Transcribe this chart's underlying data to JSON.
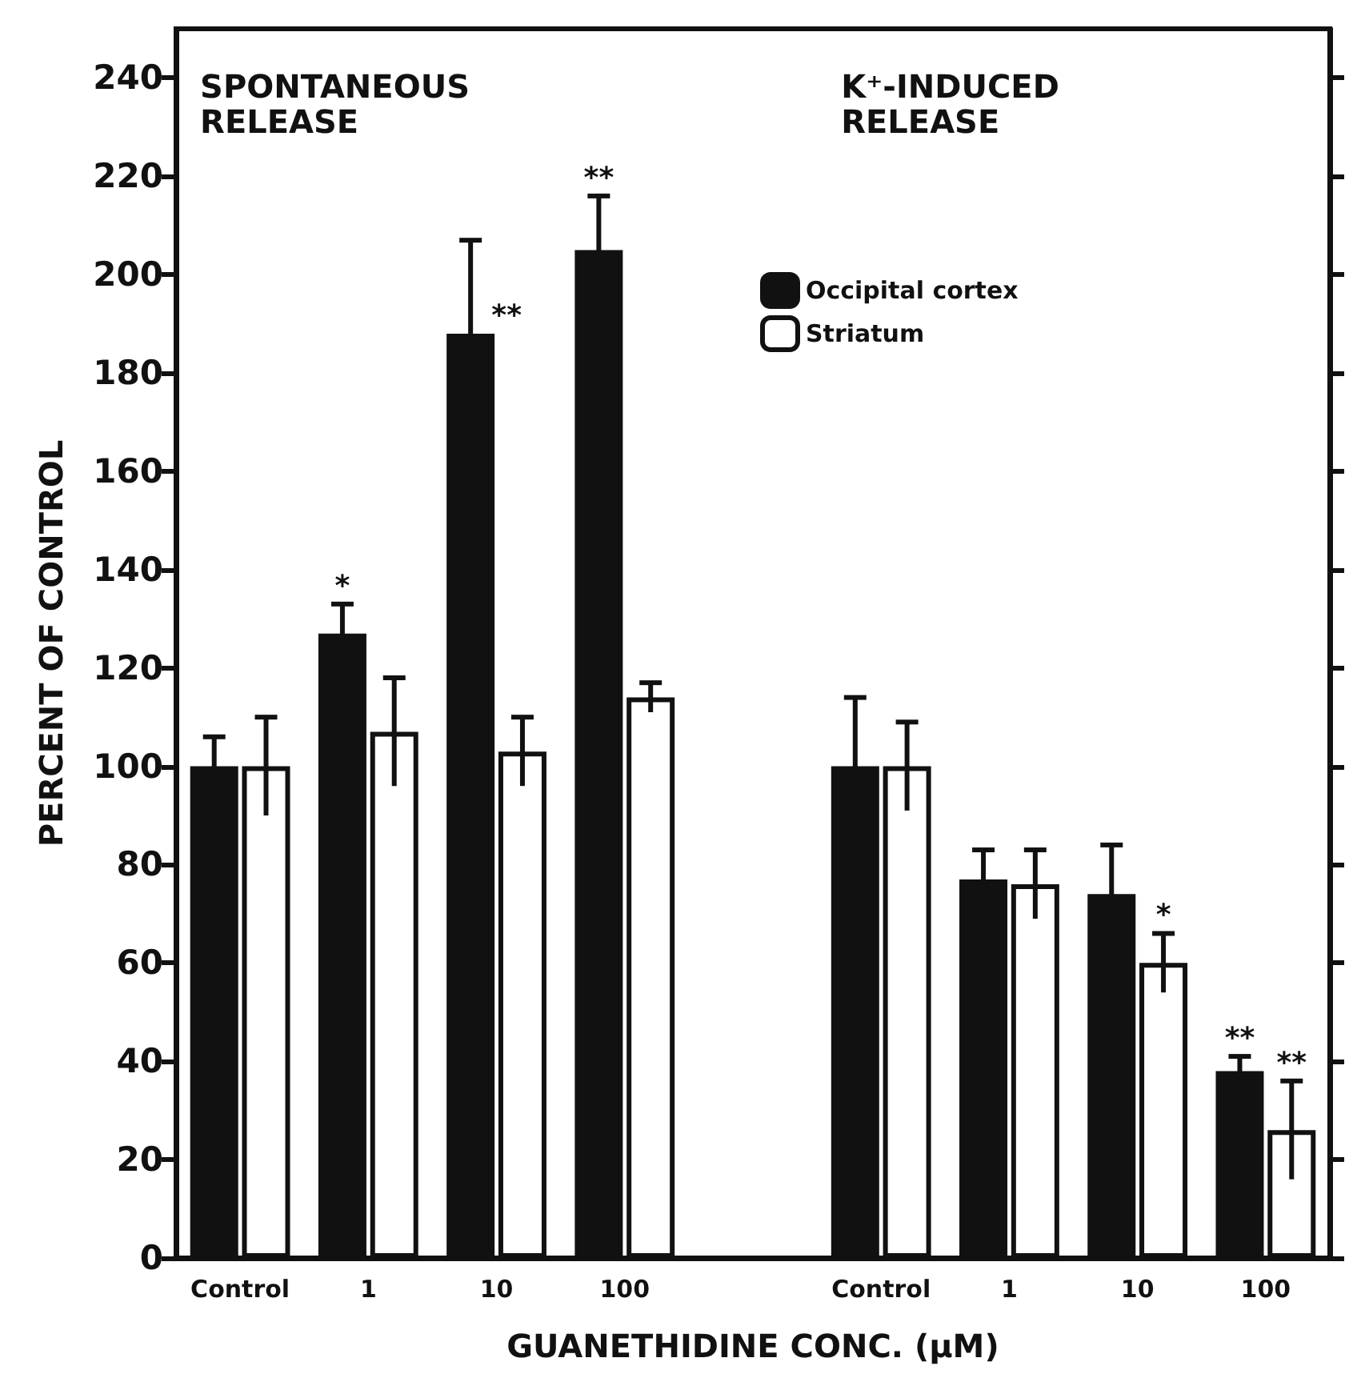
{
  "chart_data": {
    "type": "bar",
    "xlabel": "GUANETHIDINE CONC. (μM)",
    "ylabel": "PERCENT OF CONTROL",
    "annotations": [
      "SPONTANEOUS RELEASE",
      "K⁺-INDUCED RELEASE"
    ],
    "categories": [
      "Control",
      "1",
      "10",
      "100",
      null,
      "Control",
      "1",
      "10",
      "100"
    ],
    "series": [
      {
        "name": "Occipital cortex",
        "color": "#111111",
        "values": [
          100,
          127,
          188,
          205,
          null,
          100,
          77,
          74,
          38
        ],
        "errors": [
          6,
          6,
          19,
          11,
          null,
          14,
          6,
          10,
          3
        ],
        "value_labels": [
          null,
          "*",
          "**",
          "**",
          null,
          null,
          null,
          null,
          "**"
        ]
      },
      {
        "name": "Striatum",
        "color": "#ffffff",
        "values": [
          100,
          107,
          103,
          114,
          null,
          100,
          76,
          60,
          26
        ],
        "errors": [
          10,
          11,
          7,
          3,
          null,
          9,
          7,
          6,
          10
        ],
        "value_labels": [
          null,
          null,
          null,
          null,
          null,
          null,
          null,
          "*",
          "**"
        ]
      }
    ],
    "ylim": [
      0,
      250
    ],
    "yticks": [
      0,
      20,
      40,
      60,
      80,
      100,
      120,
      140,
      160,
      180,
      200,
      220,
      240
    ],
    "grid": false,
    "legend": "top right"
  }
}
